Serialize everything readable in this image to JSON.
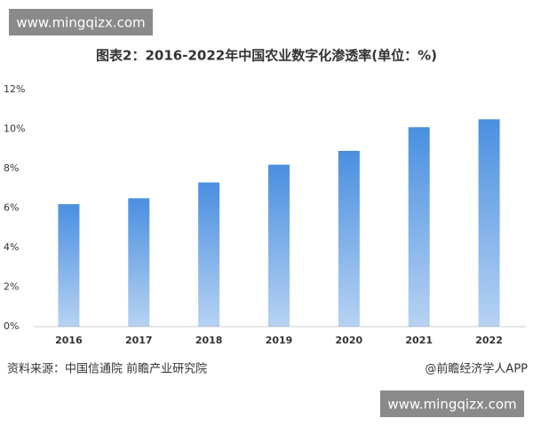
{
  "watermarks": [
    "www.mingqizx.com",
    "www.mingqizx.com"
  ],
  "chart_data": {
    "type": "bar",
    "title": "图表2：2016-2022年中国农业数字化渗透率(单位：%)",
    "categories": [
      "2016",
      "2017",
      "2018",
      "2019",
      "2020",
      "2021",
      "2022"
    ],
    "values": [
      6.2,
      6.5,
      7.3,
      8.2,
      8.9,
      10.1,
      10.5
    ],
    "color": "#4a8fe0",
    "ylim": [
      0,
      12
    ],
    "yticks": [
      {
        "value": 0,
        "label": "0%"
      },
      {
        "value": 2,
        "label": "2%"
      },
      {
        "value": 4,
        "label": "4%"
      },
      {
        "value": 6,
        "label": "6%"
      },
      {
        "value": 8,
        "label": "8%"
      },
      {
        "value": 10,
        "label": "10%"
      },
      {
        "value": 12,
        "label": "12%"
      }
    ],
    "grid": false,
    "source": "资料来源：中国信通院 前瞻产业研究院",
    "credit": "@前瞻经济学人APP"
  }
}
